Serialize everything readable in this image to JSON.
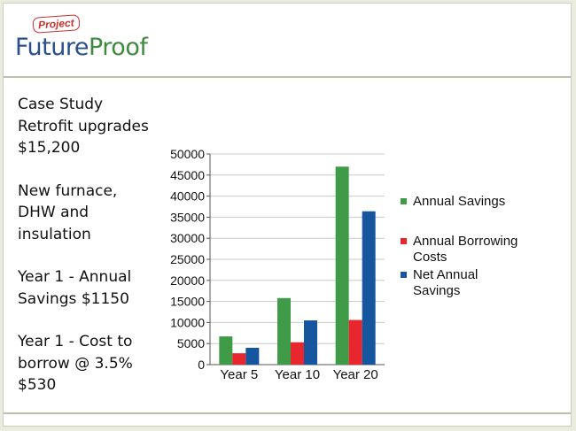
{
  "logo": {
    "badge": "Project",
    "word_future": "Future",
    "word_proof": "Proof"
  },
  "left_text": [
    [
      "Case Study",
      "Retrofit upgrades",
      "$15,200"
    ],
    [
      "New furnace,",
      "DHW and",
      "insulation"
    ],
    [
      "Year 1 - Annual",
      "Savings $1150"
    ],
    [
      "Year 1 - Cost to",
      "borrow @ 3.5%",
      "$530"
    ]
  ],
  "chart_data": {
    "type": "bar",
    "categories": [
      "Year 5",
      "Year 10",
      "Year 20"
    ],
    "series": [
      {
        "name": "Annual Savings",
        "color": "#3f9b48",
        "values": [
          6700,
          15800,
          47000
        ]
      },
      {
        "name": "Annual Borrowing Costs",
        "color": "#e8262d",
        "values": [
          2700,
          5300,
          10600
        ]
      },
      {
        "name": "Net Annual Savings",
        "color": "#16569e",
        "values": [
          4000,
          10500,
          36400
        ]
      }
    ],
    "ylim": [
      0,
      50000
    ],
    "yticks": [
      0,
      5000,
      10000,
      15000,
      20000,
      25000,
      30000,
      35000,
      40000,
      45000,
      50000
    ],
    "grid": true,
    "legend_position": "right",
    "title": "",
    "xlabel": "",
    "ylabel": ""
  }
}
